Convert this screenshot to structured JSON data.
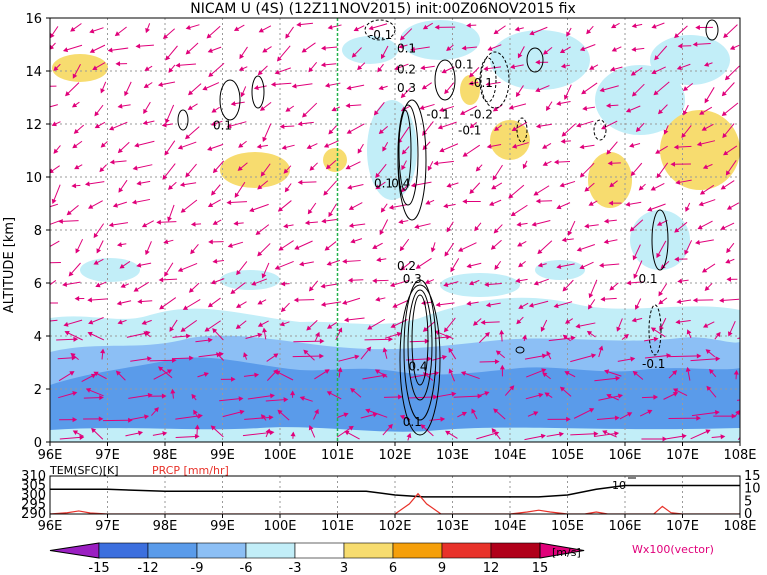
{
  "chart_data": [
    {
      "type": "heatmap",
      "title": "NICAM U (4S) (12Z11NOV2015) init:00Z06NOV2015 fix",
      "ylabel": "ALTITUDE [km]",
      "xlabel": "",
      "x_ticks": [
        "96E",
        "97E",
        "98E",
        "99E",
        "100E",
        "101E",
        "102E",
        "103E",
        "104E",
        "105E",
        "106E",
        "107E",
        "108E"
      ],
      "y_ticks": [
        "0",
        "2",
        "4",
        "6",
        "8",
        "10",
        "12",
        "14",
        "16"
      ],
      "xlim": [
        96,
        108
      ],
      "ylim": [
        0,
        16
      ],
      "grid": true,
      "vertical_marker_lon": 101,
      "contour_labels": [
        {
          "text": "-0.1",
          "lon": 101.75,
          "alt": 15.2
        },
        {
          "text": "0.1",
          "lon": 102.2,
          "alt": 14.7
        },
        {
          "text": "0.2",
          "lon": 102.2,
          "alt": 13.9
        },
        {
          "text": "0.3",
          "lon": 102.2,
          "alt": 13.2
        },
        {
          "text": "0.1",
          "lon": 103.2,
          "alt": 14.1
        },
        {
          "text": "-0.1",
          "lon": 103.5,
          "alt": 13.4
        },
        {
          "text": "-0.1",
          "lon": 102.75,
          "alt": 12.2
        },
        {
          "text": "-0.2",
          "lon": 103.5,
          "alt": 12.2
        },
        {
          "text": "-0.1",
          "lon": 103.3,
          "alt": 11.6
        },
        {
          "text": "0.1",
          "lon": 99.0,
          "alt": 11.8
        },
        {
          "text": "0.1",
          "lon": 101.8,
          "alt": 9.6
        },
        {
          "text": "0.4",
          "lon": 102.1,
          "alt": 9.6
        },
        {
          "text": "0.2",
          "lon": 102.2,
          "alt": 6.5
        },
        {
          "text": "0.3",
          "lon": 102.3,
          "alt": 6.0
        },
        {
          "text": "0.1",
          "lon": 106.4,
          "alt": 6.0
        },
        {
          "text": "0.4",
          "lon": 102.4,
          "alt": 2.7
        },
        {
          "text": "-0.1",
          "lon": 106.5,
          "alt": 2.8
        },
        {
          "text": "0.1",
          "lon": 102.3,
          "alt": 0.6
        }
      ]
    },
    {
      "type": "line",
      "series": [
        {
          "name": "TEM(SFC)[K]",
          "color": "#000000",
          "x": [
            96,
            97,
            98,
            99,
            100,
            101,
            101.5,
            102,
            102.5,
            103,
            103.5,
            104,
            104.5,
            105,
            105.5,
            106,
            106.5,
            107,
            108
          ],
          "values": [
            303,
            303,
            302,
            302,
            302,
            302,
            302,
            300,
            299,
            299,
            299,
            299,
            299,
            300,
            303,
            305,
            305,
            305,
            305
          ]
        },
        {
          "name": "PRCP [mm/hr]",
          "color": "#e8322a",
          "x": [
            96,
            96.3,
            96.5,
            96.7,
            97,
            101,
            102,
            102.25,
            102.4,
            102.55,
            102.8,
            103,
            104,
            104.3,
            104.5,
            104.7,
            105,
            105.3,
            105.5,
            105.7,
            106,
            106.5,
            106.65,
            106.8,
            107,
            108
          ],
          "values": [
            0,
            0.5,
            1.2,
            0.4,
            0,
            0,
            0,
            4,
            8,
            4,
            0,
            0,
            0,
            0.8,
            1.5,
            0.8,
            0,
            0,
            0.8,
            0,
            0,
            0,
            3,
            0.5,
            0,
            0
          ]
        }
      ],
      "x_ticks": [
        "96E",
        "97E",
        "98E",
        "99E",
        "100E",
        "101E",
        "102E",
        "103E",
        "104E",
        "105E",
        "106E",
        "107E",
        "108E"
      ],
      "left_ticks": [
        "290",
        "295",
        "300",
        "305",
        "310"
      ],
      "right_ticks": [
        "0",
        "5",
        "10",
        "15"
      ],
      "annotation": "10",
      "ylim_left": [
        290,
        310
      ],
      "ylim_right": [
        0,
        15
      ]
    }
  ],
  "colorbar": {
    "labels": [
      "-15",
      "-12",
      "-9",
      "-6",
      "-3",
      "3",
      "6",
      "9",
      "12",
      "15"
    ],
    "units": "[m/s]",
    "colors": [
      "#9b1fc2",
      "#3c6fde",
      "#5a9bea",
      "#8cbff5",
      "#c2eef8",
      "#ffffff",
      "#f7dc6f",
      "#f59f0a",
      "#e8322a",
      "#b0001a",
      "#e0007a"
    ]
  },
  "vector_label": "Wx100(vector)"
}
